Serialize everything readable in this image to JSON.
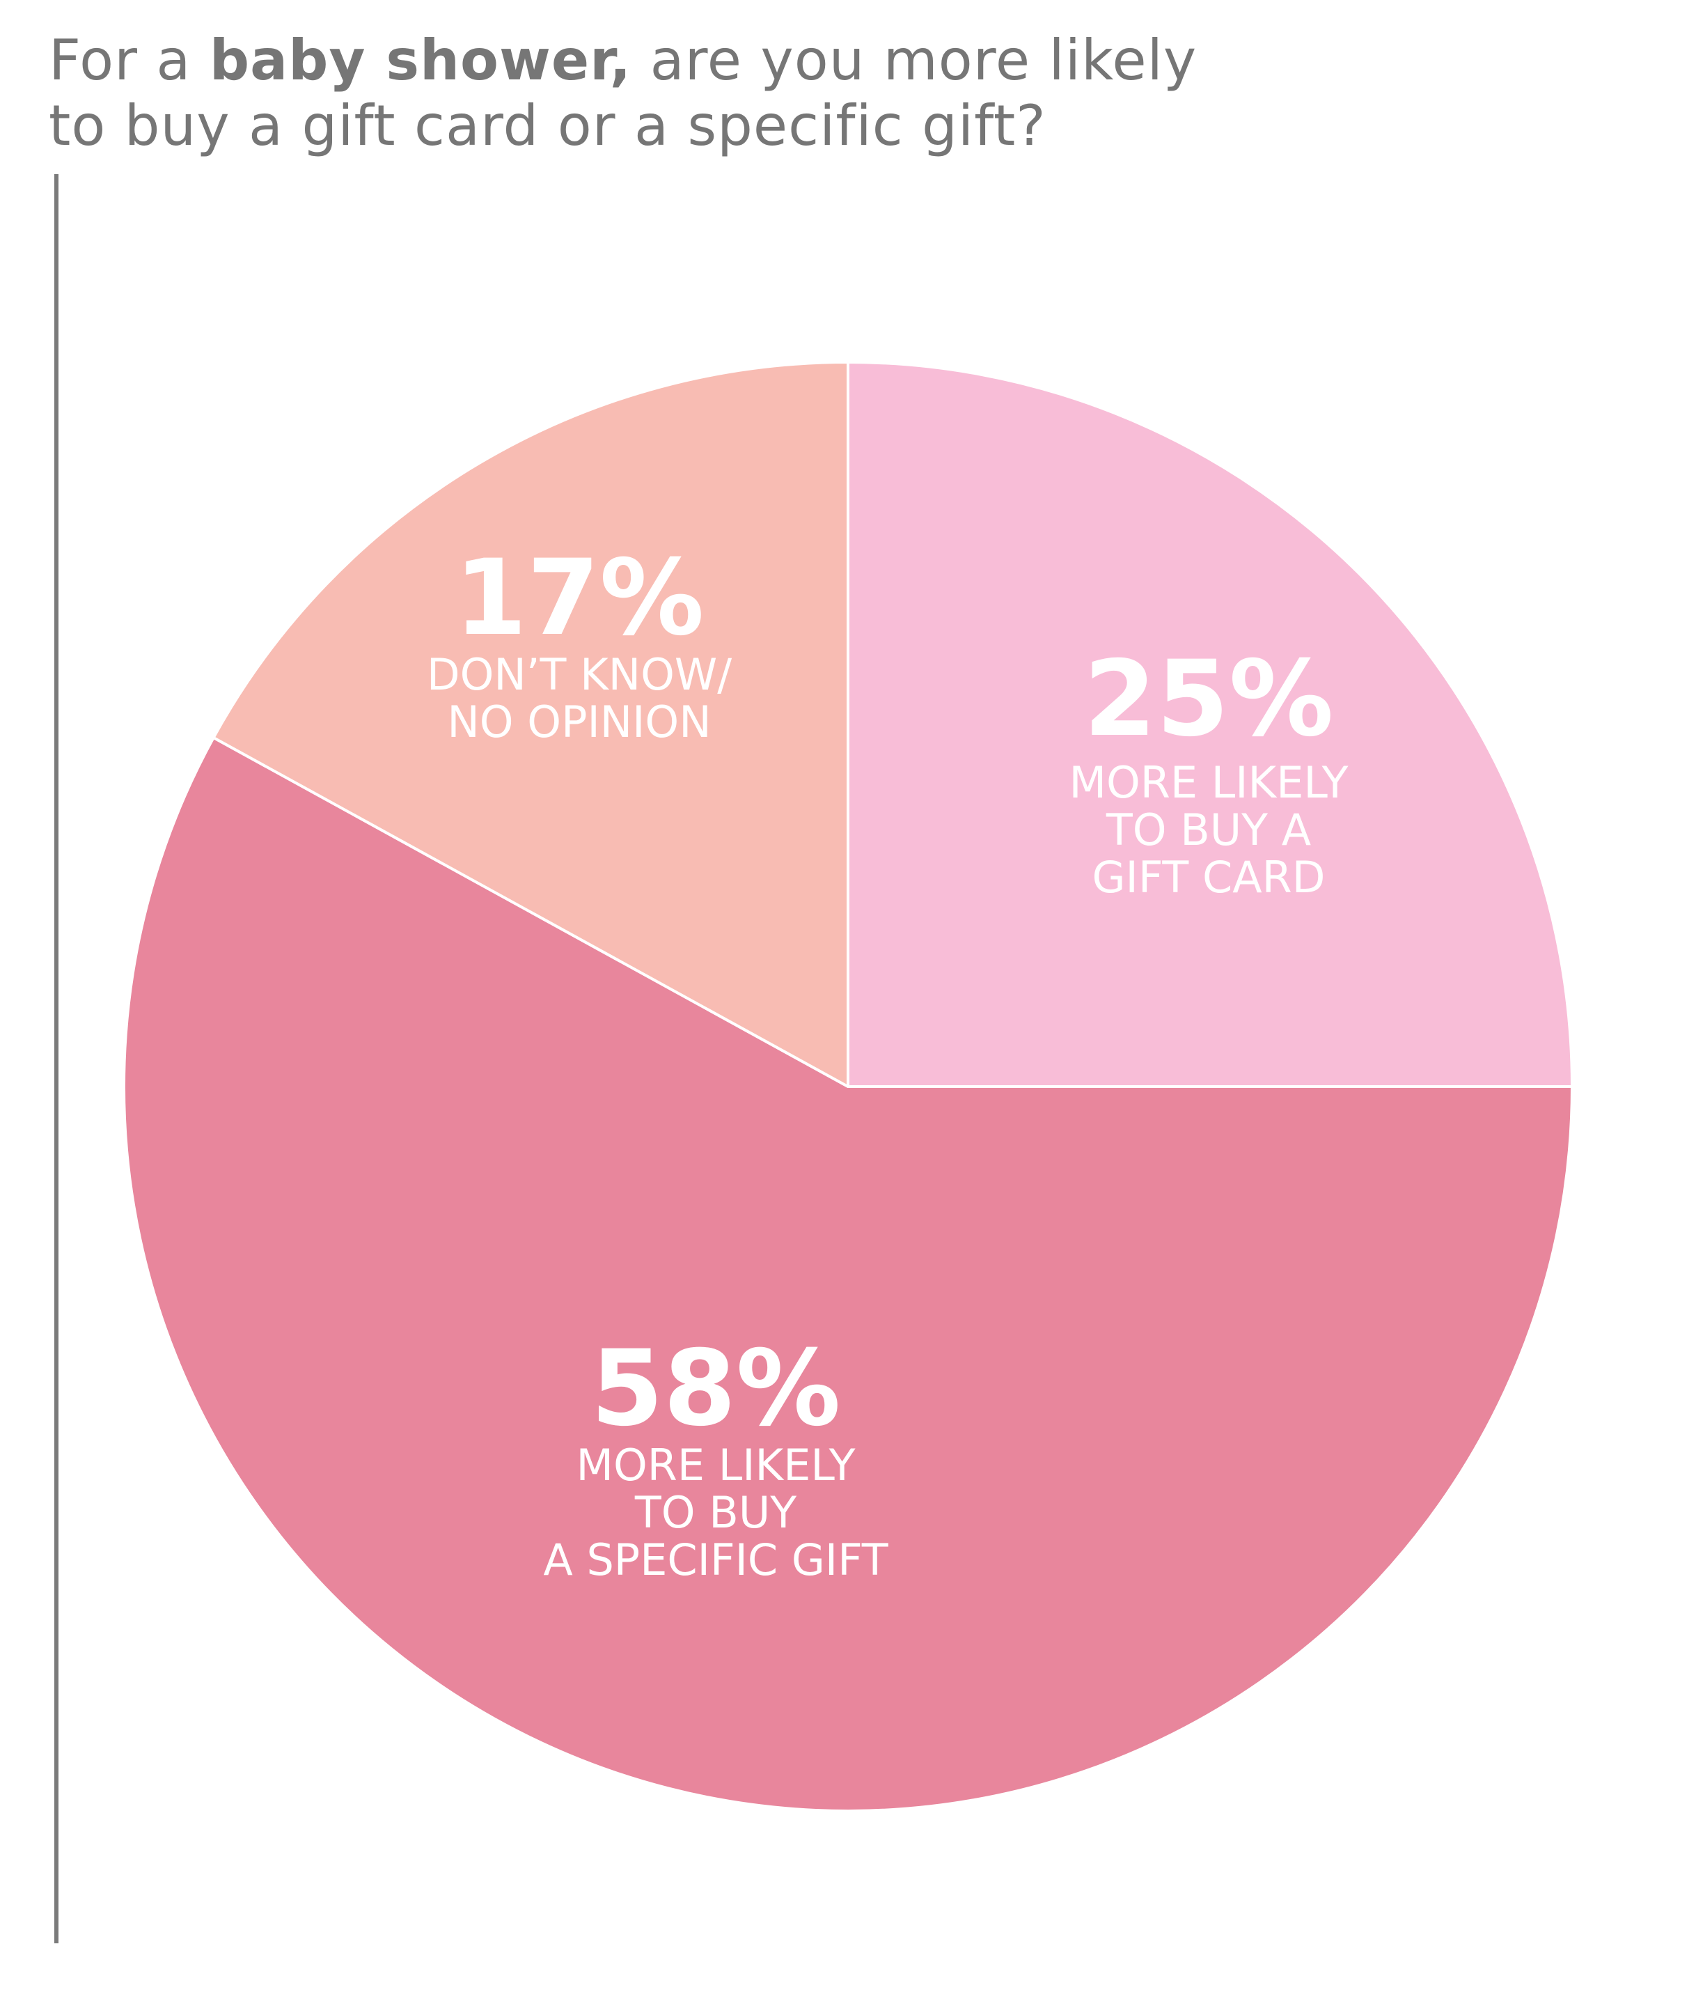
{
  "title": {
    "line1_pre": "For a ",
    "line1_bold": "baby shower,",
    "line1_post": " are you more likely",
    "line2": "to buy a gift card or a specific gift?"
  },
  "chart_data": {
    "type": "pie",
    "start": "12 o'clock, clockwise",
    "slices": [
      {
        "value": 25,
        "pct_label": "25%",
        "label_lines": [
          "MORE LIKELY",
          "TO BUY A",
          "GIFT CARD"
        ],
        "color": "#f8bdd7"
      },
      {
        "value": 58,
        "pct_label": "58%",
        "label_lines": [
          "MORE LIKELY",
          "TO BUY",
          "A SPECIFIC GIFT"
        ],
        "color": "#e8869c"
      },
      {
        "value": 17,
        "pct_label": "17%",
        "label_lines": [
          "DON’T KNOW/",
          "NO OPINION"
        ],
        "color": "#f8bcb3"
      }
    ]
  }
}
